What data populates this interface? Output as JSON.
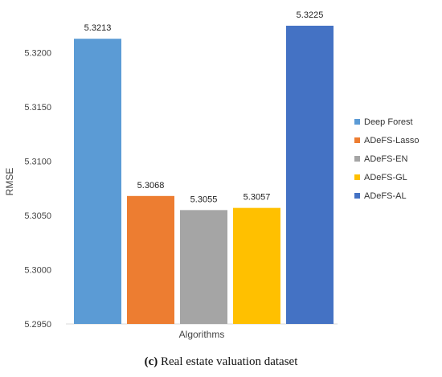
{
  "chart_data": {
    "type": "bar",
    "categories": [
      "Algorithms"
    ],
    "series": [
      {
        "name": "Deep Forest",
        "values": [
          5.3213
        ],
        "color": "#5b9bd5",
        "label": "5.3213"
      },
      {
        "name": "ADeFS-Lasso",
        "values": [
          5.3068
        ],
        "color": "#ed7d31",
        "label": "5.3068"
      },
      {
        "name": "ADeFS-EN",
        "values": [
          5.3055
        ],
        "color": "#a5a5a5",
        "label": "5.3055"
      },
      {
        "name": "ADeFS-GL",
        "values": [
          5.3057
        ],
        "color": "#ffc000",
        "label": "5.3057"
      },
      {
        "name": "ADeFS-AL",
        "values": [
          5.3225
        ],
        "color": "#4472c4",
        "label": "5.3225"
      }
    ],
    "xlabel": "Algorithms",
    "ylabel": "RMSE",
    "ylim": [
      5.295,
      5.3225
    ],
    "yticks": [
      "5.2950",
      "5.3000",
      "5.3050",
      "5.3100",
      "5.3150",
      "5.3200"
    ],
    "ytick_values": [
      5.295,
      5.3,
      5.305,
      5.31,
      5.315,
      5.32
    ],
    "legend_position": "right",
    "grid": false
  },
  "caption": {
    "prefix": "(c)",
    "text": " Real estate valuation dataset"
  }
}
